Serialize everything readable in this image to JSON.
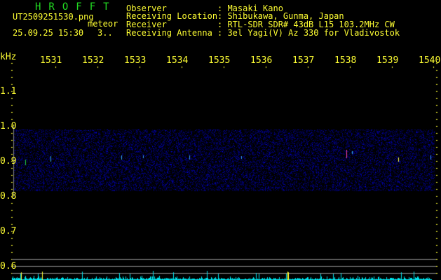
{
  "app": {
    "title": "HROFFT"
  },
  "file": {
    "name": "UT2509251530.png",
    "datetime": "25.09.25 15:30",
    "label": "meteor",
    "count": "3.."
  },
  "header": [
    {
      "key": "Observer",
      "value": "Masaki Kano"
    },
    {
      "key": "Receiving Location",
      "value": "Shibukawa, Gunma, Japan"
    },
    {
      "key": "Receiver",
      "value": "RTL-SDR SDR# 43dB L15 103.2MHz CW"
    },
    {
      "key": "Receiving Antenna",
      "value": "3el Yagi(V) Az 330 for Vladivostok"
    }
  ],
  "axis": {
    "y_unit": "kHz",
    "y_ticks": [
      "1.1",
      "1.0",
      "0.9",
      "0.8",
      "0.7",
      "0.6"
    ],
    "x_ticks": [
      "1531",
      "1532",
      "1533",
      "1534",
      "1535",
      "1536",
      "1537",
      "1538",
      "1539",
      "1540"
    ]
  },
  "colors": {
    "text": "#ffff33",
    "title": "#22dd22",
    "noise": "#1a1aff",
    "spectrum": "#00e5ee",
    "grid": "#808080"
  }
}
